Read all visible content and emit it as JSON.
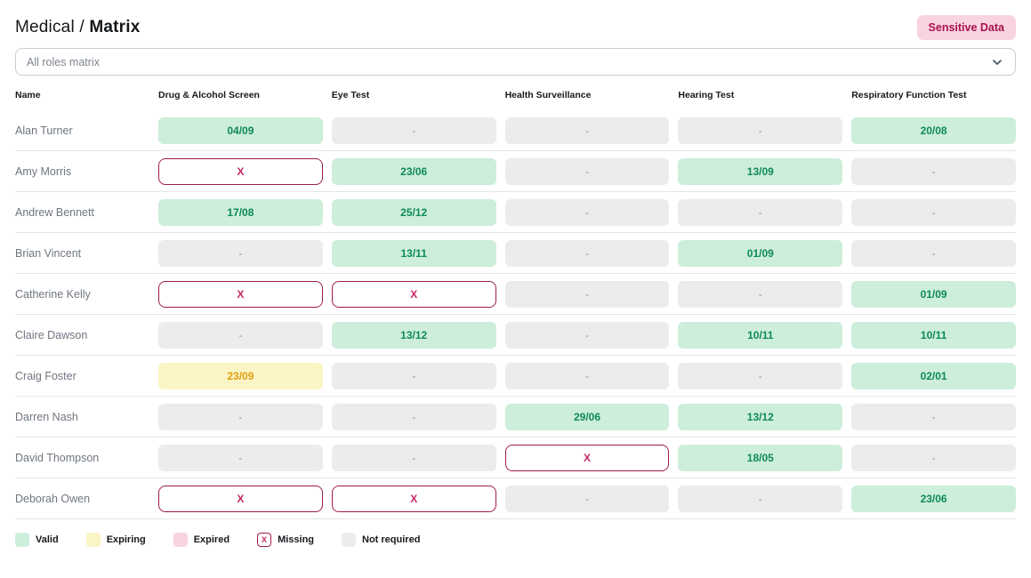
{
  "header": {
    "breadcrumb_section": "Medical / ",
    "breadcrumb_page": "Matrix",
    "badge": "Sensitive Data"
  },
  "filter": {
    "value": "All roles matrix"
  },
  "table": {
    "columns": [
      "Name",
      "Drug & Alcohol Screen",
      "Eye Test",
      "Health Surveillance",
      "Hearing Test",
      "Respiratory Function Test"
    ],
    "rows": [
      {
        "name": "Alan Turner",
        "cells": [
          {
            "status": "valid",
            "label": "04/09"
          },
          {
            "status": "not_required",
            "label": "-"
          },
          {
            "status": "not_required",
            "label": "-"
          },
          {
            "status": "not_required",
            "label": "-"
          },
          {
            "status": "valid",
            "label": "20/08"
          }
        ]
      },
      {
        "name": "Amy Morris",
        "cells": [
          {
            "status": "missing",
            "label": "X"
          },
          {
            "status": "valid",
            "label": "23/06"
          },
          {
            "status": "not_required",
            "label": "-"
          },
          {
            "status": "valid",
            "label": "13/09"
          },
          {
            "status": "not_required",
            "label": "-"
          }
        ]
      },
      {
        "name": "Andrew Bennett",
        "cells": [
          {
            "status": "valid",
            "label": "17/08"
          },
          {
            "status": "valid",
            "label": "25/12"
          },
          {
            "status": "not_required",
            "label": "-"
          },
          {
            "status": "not_required",
            "label": "-"
          },
          {
            "status": "not_required",
            "label": "-"
          }
        ]
      },
      {
        "name": "Brian Vincent",
        "cells": [
          {
            "status": "not_required",
            "label": "-"
          },
          {
            "status": "valid",
            "label": "13/11"
          },
          {
            "status": "not_required",
            "label": "-"
          },
          {
            "status": "valid",
            "label": "01/09"
          },
          {
            "status": "not_required",
            "label": "-"
          }
        ]
      },
      {
        "name": "Catherine Kelly",
        "cells": [
          {
            "status": "missing",
            "label": "X"
          },
          {
            "status": "missing",
            "label": "X"
          },
          {
            "status": "not_required",
            "label": "-"
          },
          {
            "status": "not_required",
            "label": "-"
          },
          {
            "status": "valid",
            "label": "01/09"
          }
        ]
      },
      {
        "name": "Claire Dawson",
        "cells": [
          {
            "status": "not_required",
            "label": "-"
          },
          {
            "status": "valid",
            "label": "13/12"
          },
          {
            "status": "not_required",
            "label": "-"
          },
          {
            "status": "valid",
            "label": "10/11"
          },
          {
            "status": "valid",
            "label": "10/11"
          }
        ]
      },
      {
        "name": "Craig Foster",
        "cells": [
          {
            "status": "expiring",
            "label": "23/09"
          },
          {
            "status": "not_required",
            "label": "-"
          },
          {
            "status": "not_required",
            "label": "-"
          },
          {
            "status": "not_required",
            "label": "-"
          },
          {
            "status": "valid",
            "label": "02/01"
          }
        ]
      },
      {
        "name": "Darren Nash",
        "cells": [
          {
            "status": "not_required",
            "label": "-"
          },
          {
            "status": "not_required",
            "label": "-"
          },
          {
            "status": "valid",
            "label": "29/06"
          },
          {
            "status": "valid",
            "label": "13/12"
          },
          {
            "status": "not_required",
            "label": "-"
          }
        ]
      },
      {
        "name": "David Thompson",
        "cells": [
          {
            "status": "not_required",
            "label": "-"
          },
          {
            "status": "not_required",
            "label": "-"
          },
          {
            "status": "missing",
            "label": "X"
          },
          {
            "status": "valid",
            "label": "18/05"
          },
          {
            "status": "not_required",
            "label": "-"
          }
        ]
      },
      {
        "name": "Deborah Owen",
        "cells": [
          {
            "status": "missing",
            "label": "X"
          },
          {
            "status": "missing",
            "label": "X"
          },
          {
            "status": "not_required",
            "label": "-"
          },
          {
            "status": "not_required",
            "label": "-"
          },
          {
            "status": "valid",
            "label": "23/06"
          }
        ]
      }
    ]
  },
  "legend": [
    {
      "status": "valid",
      "label": "Valid",
      "glyph": ""
    },
    {
      "status": "expiring",
      "label": "Expiring",
      "glyph": ""
    },
    {
      "status": "expired",
      "label": "Expired",
      "glyph": ""
    },
    {
      "status": "missing",
      "label": "Missing",
      "glyph": "X"
    },
    {
      "status": "not_required",
      "label": "Not required",
      "glyph": ""
    }
  ],
  "colors": {
    "valid_bg": "#cdeeda",
    "valid_text": "#0e8a56",
    "expiring_bg": "#fbf4c5",
    "expiring_text": "#dfa00e",
    "expired_bg": "#f9d3e2",
    "expired_text": "#a5134b",
    "missing_border": "#9e1b4d",
    "missing_text": "#c42767",
    "nr_bg": "#ececec",
    "nr_text": "#8d9299",
    "badge_bg": "#fad3e1",
    "badge_text": "#a5134b"
  }
}
